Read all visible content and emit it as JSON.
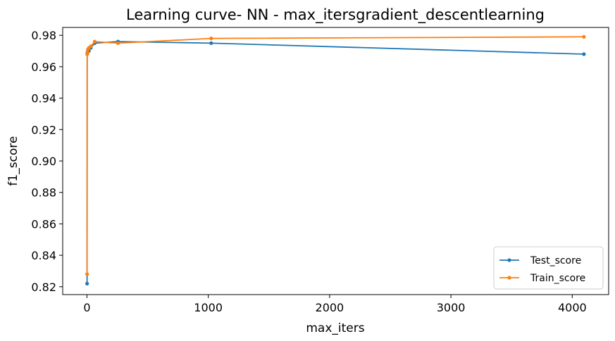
{
  "chart_data": {
    "type": "line",
    "title": "Learning curve- NN - max_itersgradient_descentlearning",
    "xlabel": "max_iters",
    "ylabel": "f1_score",
    "xlim": [
      -200,
      4300
    ],
    "ylim": [
      0.815,
      0.985
    ],
    "x_ticks": [
      0,
      1000,
      2000,
      3000,
      4000
    ],
    "x_tick_labels": [
      "0",
      "1000",
      "2000",
      "3000",
      "4000"
    ],
    "y_ticks": [
      0.82,
      0.84,
      0.86,
      0.88,
      0.9,
      0.92,
      0.94,
      0.96,
      0.98
    ],
    "y_tick_labels": [
      "0.82",
      "0.84",
      "0.86",
      "0.88",
      "0.90",
      "0.92",
      "0.94",
      "0.96",
      "0.98"
    ],
    "grid": false,
    "legend_position": "lower right",
    "series": [
      {
        "name": "Test_score",
        "color": "#1f77b4",
        "x": [
          1,
          2,
          4,
          8,
          16,
          32,
          64,
          256,
          1024,
          4096
        ],
        "y": [
          0.822,
          0.968,
          0.969,
          0.97,
          0.97,
          0.972,
          0.975,
          0.976,
          0.975,
          0.968
        ]
      },
      {
        "name": "Train_score",
        "color": "#ff7f0e",
        "x": [
          1,
          2,
          4,
          8,
          16,
          32,
          64,
          256,
          1024,
          4096
        ],
        "y": [
          0.828,
          0.968,
          0.969,
          0.971,
          0.972,
          0.973,
          0.976,
          0.975,
          0.978,
          0.979
        ]
      }
    ]
  }
}
